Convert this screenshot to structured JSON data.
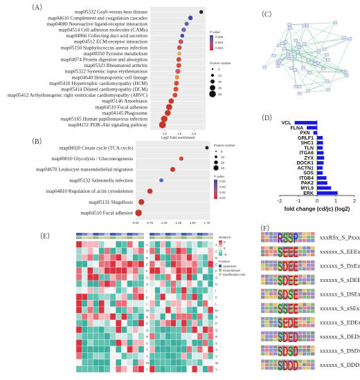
{
  "panels": {
    "a": "（A）",
    "b": "（B）",
    "c": "（C）",
    "d": "（D）",
    "e": "（E）",
    "f": "（F）"
  },
  "chart_data": [
    {
      "panel": "A",
      "type": "scatter",
      "xlabel": "Log2 Fold enrichment",
      "xticks": [
        "1.0",
        "1.5",
        "2.0"
      ],
      "xlim": [
        0.5,
        2.4
      ],
      "legend_color_title": "P value",
      "legend_color_ticks": [
        "0.006",
        "0.004",
        "0.002"
      ],
      "legend_size_title": "Protein number",
      "legend_size_ticks": [
        "4",
        "12",
        "20",
        "28",
        "36"
      ],
      "categories": [
        "map05332 Graft-versus-host disease",
        "map04610 Complement and coagulation cascades",
        "map04080 Neuroactive ligand-receptor interaction",
        "map04514 Cell adhesion molecules (CAMs)",
        "map04966 Collecting duct acid secretion",
        "map04512 ECM-receptor interaction",
        "map05150 Staphylococcus aureus infection",
        "map00350 Tyrosine metabolism",
        "map04974 Protein digestion and absorption",
        "map05323 Rheumatoid arthritis",
        "map05322 Systemic lupus erythematosus",
        "map04640 Hematopoietic cell lineage",
        "map05410 Hypertrophic cardiomyopathy (HCM)",
        "map05414 Dilated cardiomyopathy (DCM)",
        "map05412 Arrhythmogenic right ventricular cardiomyopathy (ARVC)",
        "map05146 Amoebiasis",
        "map04510 Focal adhesion",
        "map04145 Phagosome",
        "map05165 Human papillomavirus infection",
        "map04151 PI3K-Akt signaling pathway"
      ],
      "values": [
        2.25,
        1.88,
        1.75,
        1.65,
        1.6,
        1.55,
        1.5,
        1.5,
        1.48,
        1.48,
        1.45,
        1.42,
        1.4,
        1.38,
        1.35,
        1.22,
        1.15,
        1.1,
        0.98,
        0.92
      ],
      "protein_number": [
        4,
        8,
        6,
        8,
        4,
        10,
        8,
        5,
        10,
        10,
        12,
        8,
        10,
        10,
        10,
        14,
        22,
        20,
        26,
        30
      ],
      "color": [
        "#222222",
        "#3b4aa0",
        "#5a5fb0",
        "#8063a8",
        "#3b4aa0",
        "#b5566a",
        "#cf4a40",
        "#d0b060",
        "#d04a3a",
        "#d04a3a",
        "#c65a70",
        "#e09a40",
        "#d94a30",
        "#d94a30",
        "#d94a30",
        "#c0392b",
        "#c0392b",
        "#c0392b",
        "#c63a2a",
        "#c0392b"
      ]
    },
    {
      "panel": "B",
      "type": "scatter",
      "xticks": [
        "0.50",
        "0.75",
        "1.00",
        "1.25",
        "1.50",
        "1.75"
      ],
      "xlim": [
        0.5,
        1.8
      ],
      "legend_size_title": "Protein number",
      "legend_size_ticks": [
        "5",
        "10",
        "15",
        "20"
      ],
      "legend_color_title": "P value",
      "legend_color_ticks": [
        "0.04",
        "0.03",
        "0.02",
        "0.01"
      ],
      "categories": [
        "map00020 Citrate cycle (TCA cycle)",
        "map00010 Glycolysis / Gluconeogenesis",
        "map04670 Leukocyte transendothelial migration",
        "map05132 Salmonella infection",
        "map04810 Regulation of actin cytoskeleton",
        "map05131 Shigellosis",
        "map04510 Focal adhesion"
      ],
      "values": [
        1.75,
        1.3,
        1.15,
        0.95,
        0.75,
        0.6,
        0.55
      ],
      "protein_number": [
        2,
        5,
        8,
        4,
        10,
        14,
        20
      ],
      "color": [
        "#222222",
        "#d04a3a",
        "#c0392b",
        "#4a6fc0",
        "#c0392b",
        "#c0392b",
        "#c0392b"
      ]
    },
    {
      "panel": "D",
      "type": "bar",
      "orientation": "horizontal",
      "xlabel": "fold change (cd/jc) (log2)",
      "xticks": [
        "-2",
        "-1",
        "0",
        "1",
        "2"
      ],
      "xlim": [
        -2,
        2
      ],
      "categories": [
        "VCL",
        "FLNA",
        "PXN",
        "GRLF1",
        "SHC1",
        "TLN",
        "ITGA6",
        "ZYX",
        "DOCK1",
        "ACTN1",
        "SOS",
        "ITGB4",
        "PAK2",
        "MYL9",
        "ERK"
      ],
      "values": [
        -1.2,
        -0.55,
        -0.2,
        0.3,
        0.32,
        0.3,
        0.35,
        0.38,
        0.35,
        0.3,
        0.3,
        0.5,
        0.55,
        0.75,
        1.1
      ]
    }
  ],
  "heatmap_e": {
    "left_labels": [
      "A",
      "C",
      "D",
      "E",
      "F",
      "G",
      "H",
      "I",
      "K",
      "L",
      "M",
      "N",
      "P",
      "Q",
      "R",
      "S",
      "T",
      "V",
      "W",
      "Y"
    ],
    "right_labels": [
      "A",
      "C",
      "D",
      "E",
      "F",
      "G",
      "H",
      "I",
      "K",
      "L",
      "M",
      "N",
      "P",
      "Q",
      "R",
      "S",
      "T",
      "V",
      "W",
      "Y"
    ],
    "legend_title": "Distance",
    "legend_groups": [
      "Position",
      "Upstream",
      "Downstream",
      "Modification site"
    ],
    "legend_ticks": [
      "5",
      "0",
      "-5"
    ]
  },
  "motifs_f": [
    "xxxRSx_S_Pxxxxx",
    "xxxxxx_S_EEExxx",
    "xxxxxx_S_DxExEx",
    "xxxxxx_S_xDEExx",
    "xxxxxx_S_DSExxx",
    "xxxxxx_S_xSExEx",
    "xxxxxx_S_EDExxx",
    "xxxxxx_S_DEDxxx",
    "xxxxxx_S_DSDxxx",
    "xxxxxx_S_DDDxxx"
  ],
  "colors": {
    "bar_blue": "#1a1adb",
    "heat_red": "#d9333f",
    "heat_teal": "#3fb0a0",
    "heat_white": "#f4f4f4",
    "dot_red": "#c0392b",
    "network_node": "#9aa0d0",
    "network_edge": "#7dc4a0"
  }
}
